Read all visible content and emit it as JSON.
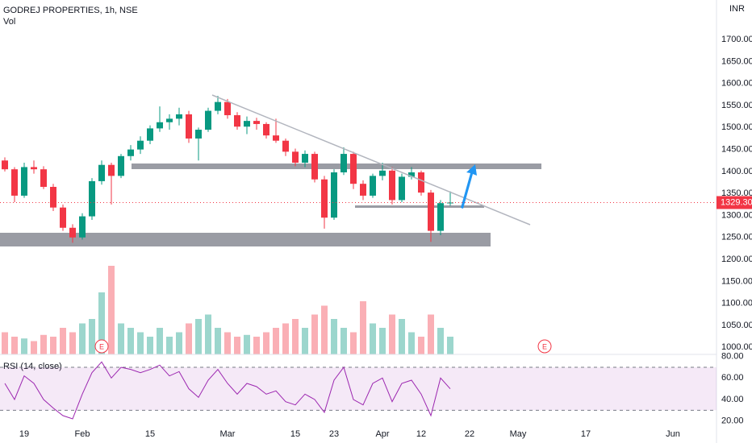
{
  "chart_data": {
    "type": "candlestick",
    "title": "GODREJ PROPERTIES, 1h, NSE",
    "volume_title": "Vol",
    "currency": "INR",
    "categories": [
      null,
      null,
      "19",
      null,
      null,
      null,
      null,
      null,
      "Feb",
      null,
      null,
      null,
      null,
      null,
      null,
      "15",
      null,
      null,
      null,
      null,
      null,
      null,
      null,
      "Mar",
      null,
      null,
      null,
      null,
      null,
      null,
      "15",
      null,
      null,
      null,
      "23",
      null,
      null,
      null,
      null,
      "Apr",
      null,
      null,
      null,
      "12",
      null,
      null,
      null,
      null,
      "22",
      null,
      null,
      null,
      null,
      "May",
      null,
      null,
      null,
      null,
      null,
      null,
      "17",
      null,
      null,
      null,
      null,
      null,
      null,
      null,
      null,
      "Jun",
      null,
      null,
      null,
      null
    ],
    "open": [
      1425,
      1405,
      1345,
      1410,
      1405,
      1365,
      1318,
      1272,
      1250,
      1298,
      1378,
      1415,
      1390,
      1435,
      1450,
      1470,
      1498,
      1512,
      1520,
      1530,
      1475,
      1495,
      1538,
      1558,
      1528,
      1502,
      1515,
      1508,
      1482,
      1470,
      1445,
      1420,
      1440,
      1382,
      1295,
      1398,
      1440,
      1372,
      1345,
      1390,
      1402,
      1335,
      1388,
      1398,
      1352,
      1265,
      1328,
      null,
      null,
      null,
      null,
      null,
      null,
      null,
      null,
      null,
      null,
      null,
      null,
      null,
      null,
      null,
      null,
      null,
      null,
      null,
      null,
      null,
      null,
      null,
      null,
      null,
      null,
      null
    ],
    "high": [
      1432,
      1410,
      1420,
      1425,
      1412,
      1372,
      1325,
      1280,
      1305,
      1385,
      1425,
      1420,
      1440,
      1460,
      1480,
      1505,
      1548,
      1530,
      1545,
      1538,
      1500,
      1545,
      1572,
      1565,
      1535,
      1525,
      1522,
      1512,
      1520,
      1475,
      1452,
      1448,
      1445,
      1390,
      1405,
      1455,
      1445,
      1380,
      1395,
      1420,
      1410,
      1395,
      1410,
      1402,
      1358,
      1335,
      1355,
      null,
      null,
      null,
      null,
      null,
      null,
      null,
      null,
      null,
      null,
      null,
      null,
      null,
      null,
      null,
      null,
      null,
      null,
      null,
      null,
      null,
      null,
      null,
      null,
      null,
      null,
      null
    ],
    "low": [
      1400,
      1330,
      1340,
      1395,
      1360,
      1310,
      1265,
      1238,
      1245,
      1290,
      1370,
      1325,
      1385,
      1425,
      1440,
      1462,
      1490,
      1495,
      1505,
      1465,
      1425,
      1490,
      1530,
      1520,
      1495,
      1485,
      1495,
      1475,
      1465,
      1435,
      1412,
      1410,
      1375,
      1270,
      1290,
      1392,
      1360,
      1335,
      1340,
      1380,
      1325,
      1330,
      1382,
      1345,
      1240,
      1255,
      1322,
      null,
      null,
      null,
      null,
      null,
      null,
      null,
      null,
      null,
      null,
      null,
      null,
      null,
      null,
      null,
      null,
      null,
      null,
      null,
      null,
      null,
      null,
      null,
      null,
      null,
      null,
      null
    ],
    "close": [
      1405,
      1345,
      1410,
      1405,
      1365,
      1318,
      1272,
      1250,
      1298,
      1378,
      1415,
      1390,
      1435,
      1450,
      1470,
      1498,
      1512,
      1520,
      1530,
      1475,
      1495,
      1538,
      1558,
      1528,
      1502,
      1515,
      1508,
      1482,
      1470,
      1445,
      1420,
      1440,
      1382,
      1295,
      1398,
      1440,
      1372,
      1345,
      1390,
      1402,
      1335,
      1388,
      1398,
      1352,
      1265,
      1328,
      1329.3,
      null,
      null,
      null,
      null,
      null,
      null,
      null,
      null,
      null,
      null,
      null,
      null,
      null,
      null,
      null,
      null,
      null,
      null,
      null,
      null,
      null,
      null,
      null,
      null,
      null,
      null,
      null
    ],
    "last_close_label": "1329.30",
    "volume": [
      25,
      20,
      18,
      15,
      22,
      20,
      30,
      25,
      35,
      40,
      70,
      100,
      35,
      30,
      25,
      20,
      30,
      20,
      25,
      35,
      40,
      45,
      30,
      25,
      20,
      22,
      20,
      25,
      30,
      35,
      40,
      30,
      45,
      55,
      40,
      30,
      25,
      60,
      35,
      30,
      45,
      40,
      25,
      20,
      45,
      30,
      20,
      null,
      null,
      null,
      null,
      null,
      null,
      null,
      null,
      null,
      null,
      null,
      null,
      null,
      null,
      null,
      null,
      null,
      null,
      null,
      null,
      null,
      null,
      null,
      null,
      null,
      null,
      null
    ],
    "volume_ylim": [
      0,
      100
    ],
    "colors": {
      "up": "#089981",
      "down": "#f23645"
    },
    "ylim": [
      984,
      1790
    ],
    "yticks": [
      {
        "value": 1700,
        "label": "1700.00"
      },
      {
        "value": 1650,
        "label": "1650.00"
      },
      {
        "value": 1600,
        "label": "1600.00"
      },
      {
        "value": 1550,
        "label": "1550.00"
      },
      {
        "value": 1500,
        "label": "1500.00"
      },
      {
        "value": 1450,
        "label": "1450.00"
      },
      {
        "value": 1400,
        "label": "1400.00"
      },
      {
        "value": 1350,
        "label": "1350.00"
      },
      {
        "value": 1300,
        "label": "1300.00"
      },
      {
        "value": 1250,
        "label": "1250.00"
      },
      {
        "value": 1200,
        "label": "1200.00"
      },
      {
        "value": 1150,
        "label": "1150.00"
      },
      {
        "value": 1100,
        "label": "1100.00"
      },
      {
        "value": 1050,
        "label": "1050.00"
      },
      {
        "value": 1000,
        "label": "1000.00"
      }
    ],
    "grid": false,
    "event_markers": [
      "E",
      "E"
    ],
    "rsi": {
      "title": "RSI (14, close)",
      "color": "#9c27b0",
      "values": [
        55,
        40,
        62,
        55,
        40,
        32,
        25,
        22,
        45,
        65,
        75,
        60,
        70,
        68,
        65,
        68,
        72,
        62,
        66,
        50,
        42,
        58,
        68,
        55,
        45,
        55,
        52,
        45,
        48,
        38,
        35,
        45,
        40,
        28,
        58,
        70,
        40,
        35,
        55,
        60,
        38,
        55,
        58,
        45,
        25,
        60,
        50,
        null,
        null,
        null,
        null,
        null,
        null,
        null,
        null,
        null,
        null,
        null,
        null,
        null,
        null,
        null,
        null,
        null,
        null,
        null,
        null,
        null,
        null,
        null,
        null,
        null,
        null,
        null
      ],
      "ylim": [
        13,
        82
      ],
      "bands": [
        30,
        70
      ],
      "yticks": [
        {
          "value": 80,
          "label": "80.00"
        },
        {
          "value": 60,
          "label": "60.00"
        },
        {
          "value": 40,
          "label": "40.00"
        },
        {
          "value": 20,
          "label": "20.00"
        }
      ]
    }
  }
}
